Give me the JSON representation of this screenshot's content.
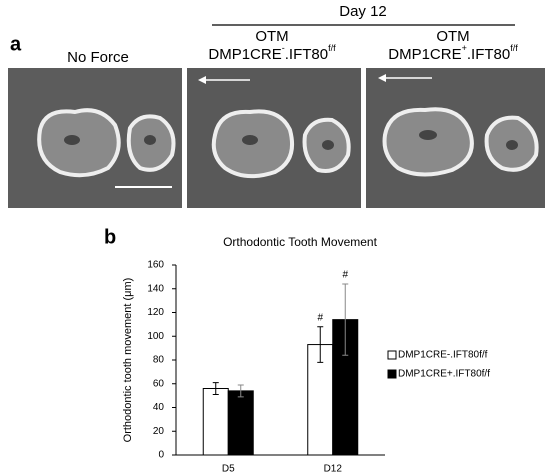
{
  "panel_a": {
    "label": "a",
    "header": "Day 12",
    "columns": [
      {
        "line1": "No Force"
      },
      {
        "line1": "OTM",
        "name": "DMP1CRE",
        "sup": "-",
        "suffix": ".IFT80",
        "sup2": "f/f"
      },
      {
        "line1": "OTM",
        "name": "DMP1CRE",
        "sup": "+",
        "suffix": ".IFT80",
        "sup2": "f/f"
      }
    ]
  },
  "panel_b_label": "b",
  "chart_data": {
    "type": "bar",
    "title": "Orthodontic Tooth Movement",
    "y_label": "Orthodontic tooth movement (μm)",
    "categories": [
      "D5",
      "D12"
    ],
    "series": [
      {
        "name": "DMP1CRE-.IFT80f/f",
        "color": "#ffffff",
        "values": [
          56,
          93
        ],
        "errors": [
          5,
          15
        ],
        "significance": [
          null,
          "#"
        ]
      },
      {
        "name": "DMP1CRE+.IFT80f/f",
        "color": "#000000",
        "values": [
          54,
          114
        ],
        "errors": [
          5,
          30
        ],
        "significance": [
          null,
          "#"
        ]
      }
    ],
    "ylim": [
      0,
      160
    ],
    "yticks": [
      0,
      20,
      40,
      60,
      80,
      100,
      120,
      140,
      160
    ],
    "grid": false,
    "legend": "right"
  }
}
